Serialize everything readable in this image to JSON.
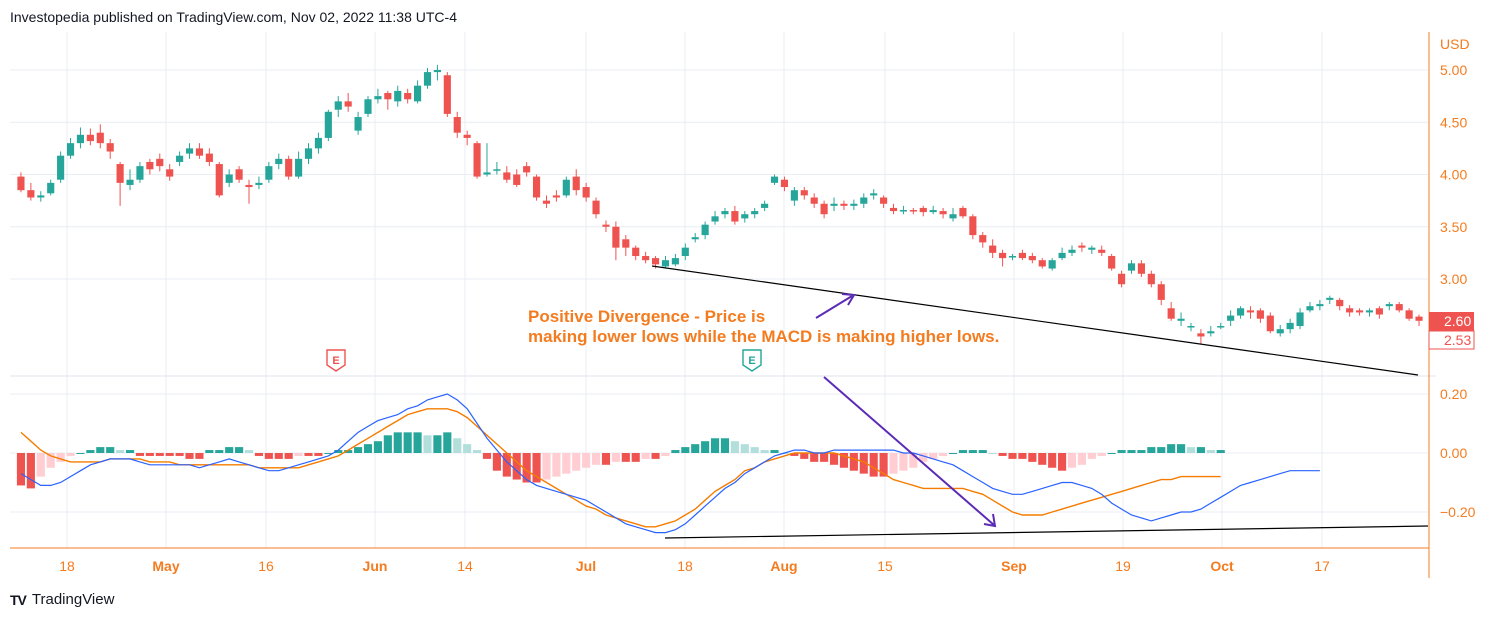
{
  "header": {
    "text": "Investopedia published on TradingView.com, Nov 02, 2022 11:38 UTC-4"
  },
  "footer": {
    "logo": "TV",
    "brand": "TradingView"
  },
  "colors": {
    "up": "#26a69a",
    "down": "#ef5350",
    "hist_up_strong": "#26a69a",
    "hist_up_weak": "#b2dfdb",
    "hist_down_strong": "#ef5350",
    "hist_down_weak": "#ffcdd2",
    "macd_line": "#2962ff",
    "signal_line": "#f57c00",
    "axis": "#f47c20",
    "grid": "#e8eef3",
    "arrow": "#5b2bb5",
    "trendline": "#000000"
  },
  "chart_data": {
    "type": "candlestick+macd",
    "price_axis": {
      "currency": "USD",
      "ticks": [
        "5.00",
        "4.50",
        "4.00",
        "3.50",
        "3.00"
      ],
      "tick_values": [
        5.0,
        4.5,
        4.0,
        3.5,
        3.0
      ],
      "last_price": "2.60",
      "low_price": "2.53"
    },
    "macd_axis": {
      "ticks": [
        "0.20",
        "0.00",
        "−0.20"
      ],
      "tick_values": [
        0.2,
        0.0,
        -0.2
      ]
    },
    "x_ticks": [
      {
        "label": "18",
        "month": false
      },
      {
        "label": "May",
        "month": true
      },
      {
        "label": "16",
        "month": false
      },
      {
        "label": "Jun",
        "month": true
      },
      {
        "label": "14",
        "month": false
      },
      {
        "label": "Jul",
        "month": true
      },
      {
        "label": "18",
        "month": false
      },
      {
        "label": "Aug",
        "month": true
      },
      {
        "label": "15",
        "month": false
      },
      {
        "label": "Sep",
        "month": true
      },
      {
        "label": "19",
        "month": false
      },
      {
        "label": "Oct",
        "month": true
      },
      {
        "label": "17",
        "month": false
      }
    ],
    "candles": [
      [
        3.98,
        3.85,
        4.02,
        3.83
      ],
      [
        3.85,
        3.78,
        3.92,
        3.75
      ],
      [
        3.78,
        3.8,
        3.84,
        3.74
      ],
      [
        3.82,
        3.92,
        3.95,
        3.8
      ],
      [
        3.95,
        4.18,
        4.22,
        3.92
      ],
      [
        4.18,
        4.3,
        4.35,
        4.15
      ],
      [
        4.3,
        4.38,
        4.45,
        4.25
      ],
      [
        4.38,
        4.32,
        4.44,
        4.28
      ],
      [
        4.4,
        4.3,
        4.48,
        4.25
      ],
      [
        4.3,
        4.22,
        4.34,
        4.15
      ],
      [
        4.1,
        3.92,
        4.12,
        3.7
      ],
      [
        3.9,
        3.95,
        4.05,
        3.85
      ],
      [
        3.95,
        4.08,
        4.12,
        3.92
      ],
      [
        4.12,
        4.05,
        4.15,
        4.0
      ],
      [
        4.15,
        4.08,
        4.2,
        4.03
      ],
      [
        4.05,
        3.98,
        4.1,
        3.94
      ],
      [
        4.12,
        4.18,
        4.22,
        4.08
      ],
      [
        4.2,
        4.25,
        4.3,
        4.15
      ],
      [
        4.25,
        4.18,
        4.3,
        4.15
      ],
      [
        4.2,
        4.12,
        4.25,
        4.08
      ],
      [
        4.1,
        3.8,
        4.12,
        3.78
      ],
      [
        3.92,
        4.0,
        4.05,
        3.88
      ],
      [
        4.05,
        3.95,
        4.08,
        3.92
      ],
      [
        3.9,
        3.88,
        3.95,
        3.72
      ],
      [
        3.9,
        3.92,
        3.98,
        3.86
      ],
      [
        3.95,
        4.08,
        4.12,
        3.92
      ],
      [
        4.1,
        4.15,
        4.2,
        4.05
      ],
      [
        4.15,
        3.98,
        4.18,
        3.95
      ],
      [
        3.98,
        4.15,
        4.22,
        3.96
      ],
      [
        4.15,
        4.25,
        4.3,
        4.1
      ],
      [
        4.25,
        4.35,
        4.4,
        4.2
      ],
      [
        4.35,
        4.6,
        4.62,
        4.32
      ],
      [
        4.62,
        4.7,
        4.75,
        4.55
      ],
      [
        4.7,
        4.65,
        4.78,
        4.6
      ],
      [
        4.42,
        4.55,
        4.6,
        4.38
      ],
      [
        4.58,
        4.72,
        4.75,
        4.55
      ],
      [
        4.72,
        4.75,
        4.82,
        4.68
      ],
      [
        4.78,
        4.72,
        4.8,
        4.62
      ],
      [
        4.7,
        4.8,
        4.85,
        4.65
      ],
      [
        4.78,
        4.72,
        4.82,
        4.68
      ],
      [
        4.7,
        4.85,
        4.9,
        4.68
      ],
      [
        4.85,
        4.98,
        5.02,
        4.82
      ],
      [
        4.98,
        5.0,
        5.05,
        4.9
      ],
      [
        4.95,
        4.58,
        4.98,
        4.55
      ],
      [
        4.55,
        4.4,
        4.6,
        4.35
      ],
      [
        4.38,
        4.35,
        4.42,
        4.28
      ],
      [
        4.3,
        3.98,
        4.32,
        3.96
      ],
      [
        4.0,
        4.02,
        4.3,
        3.98
      ],
      [
        4.05,
        4.05,
        4.12,
        4.0
      ],
      [
        4.02,
        3.95,
        4.08,
        3.92
      ],
      [
        4.0,
        3.9,
        4.05,
        3.88
      ],
      [
        4.08,
        4.02,
        4.12,
        3.98
      ],
      [
        3.98,
        3.78,
        4.0,
        3.75
      ],
      [
        3.75,
        3.72,
        3.8,
        3.68
      ],
      [
        3.8,
        3.78,
        3.85,
        3.74
      ],
      [
        3.8,
        3.95,
        3.98,
        3.78
      ],
      [
        3.98,
        3.85,
        4.05,
        3.8
      ],
      [
        3.88,
        3.78,
        3.92,
        3.74
      ],
      [
        3.75,
        3.62,
        3.78,
        3.58
      ],
      [
        3.52,
        3.5,
        3.56,
        3.45
      ],
      [
        3.5,
        3.3,
        3.55,
        3.18
      ],
      [
        3.38,
        3.3,
        3.42,
        3.22
      ],
      [
        3.3,
        3.22,
        3.32,
        3.18
      ],
      [
        3.22,
        3.18,
        3.26,
        3.15
      ],
      [
        3.2,
        3.14,
        3.22,
        3.1
      ],
      [
        3.12,
        3.18,
        3.22,
        3.1
      ],
      [
        3.14,
        3.2,
        3.24,
        3.12
      ],
      [
        3.22,
        3.3,
        3.34,
        3.18
      ],
      [
        3.38,
        3.4,
        3.44,
        3.35
      ],
      [
        3.42,
        3.52,
        3.55,
        3.38
      ],
      [
        3.55,
        3.6,
        3.65,
        3.52
      ],
      [
        3.62,
        3.65,
        3.68,
        3.58
      ],
      [
        3.65,
        3.55,
        3.7,
        3.52
      ],
      [
        3.58,
        3.62,
        3.65,
        3.54
      ],
      [
        3.62,
        3.65,
        3.68,
        3.58
      ],
      [
        3.68,
        3.72,
        3.75,
        3.65
      ],
      [
        3.92,
        3.98,
        4.0,
        3.9
      ],
      [
        3.95,
        3.88,
        3.98,
        3.84
      ],
      [
        3.75,
        3.85,
        3.88,
        3.7
      ],
      [
        3.85,
        3.8,
        3.88,
        3.76
      ],
      [
        3.78,
        3.72,
        3.82,
        3.68
      ],
      [
        3.72,
        3.62,
        3.75,
        3.58
      ],
      [
        3.7,
        3.72,
        3.78,
        3.65
      ],
      [
        3.72,
        3.7,
        3.75,
        3.66
      ],
      [
        3.7,
        3.72,
        3.76,
        3.66
      ],
      [
        3.72,
        3.78,
        3.82,
        3.68
      ],
      [
        3.8,
        3.82,
        3.86,
        3.76
      ],
      [
        3.78,
        3.72,
        3.8,
        3.68
      ],
      [
        3.68,
        3.65,
        3.72,
        3.62
      ],
      [
        3.65,
        3.66,
        3.7,
        3.62
      ],
      [
        3.66,
        3.65,
        3.68,
        3.62
      ],
      [
        3.68,
        3.64,
        3.7,
        3.6
      ],
      [
        3.64,
        3.66,
        3.7,
        3.62
      ],
      [
        3.65,
        3.62,
        3.68,
        3.58
      ],
      [
        3.58,
        3.62,
        3.68,
        3.55
      ],
      [
        3.68,
        3.6,
        3.7,
        3.58
      ],
      [
        3.6,
        3.42,
        3.62,
        3.38
      ],
      [
        3.42,
        3.35,
        3.45,
        3.3
      ],
      [
        3.32,
        3.25,
        3.38,
        3.2
      ],
      [
        3.25,
        3.2,
        3.28,
        3.12
      ],
      [
        3.22,
        3.22,
        3.24,
        3.18
      ],
      [
        3.25,
        3.2,
        3.28,
        3.18
      ],
      [
        3.22,
        3.18,
        3.25,
        3.15
      ],
      [
        3.18,
        3.12,
        3.2,
        3.1
      ],
      [
        3.1,
        3.18,
        3.2,
        3.08
      ],
      [
        3.2,
        3.25,
        3.3,
        3.18
      ],
      [
        3.25,
        3.28,
        3.32,
        3.22
      ],
      [
        3.32,
        3.3,
        3.35,
        3.26
      ],
      [
        3.28,
        3.3,
        3.32,
        3.24
      ],
      [
        3.28,
        3.25,
        3.32,
        3.22
      ],
      [
        3.22,
        3.1,
        3.24,
        3.08
      ],
      [
        3.05,
        2.95,
        3.08,
        2.92
      ],
      [
        3.08,
        3.15,
        3.18,
        3.05
      ],
      [
        3.15,
        3.05,
        3.18,
        3.02
      ],
      [
        3.05,
        2.95,
        3.08,
        2.92
      ],
      [
        2.95,
        2.8,
        2.98,
        2.75
      ],
      [
        2.72,
        2.62,
        2.78,
        2.6
      ],
      [
        2.6,
        2.62,
        2.68,
        2.55
      ],
      [
        2.55,
        2.55,
        2.58,
        2.5
      ],
      [
        2.48,
        2.45,
        2.52,
        2.38
      ],
      [
        2.48,
        2.5,
        2.55,
        2.45
      ],
      [
        2.55,
        2.55,
        2.58,
        2.52
      ],
      [
        2.6,
        2.65,
        2.7,
        2.55
      ],
      [
        2.65,
        2.72,
        2.74,
        2.62
      ],
      [
        2.7,
        2.68,
        2.74,
        2.62
      ],
      [
        2.7,
        2.62,
        2.72,
        2.58
      ],
      [
        2.65,
        2.5,
        2.68,
        2.48
      ],
      [
        2.48,
        2.52,
        2.56,
        2.45
      ],
      [
        2.52,
        2.58,
        2.62,
        2.48
      ],
      [
        2.55,
        2.68,
        2.72,
        2.52
      ],
      [
        2.7,
        2.74,
        2.78,
        2.68
      ],
      [
        2.74,
        2.76,
        2.8,
        2.7
      ],
      [
        2.8,
        2.82,
        2.84,
        2.76
      ],
      [
        2.8,
        2.74,
        2.82,
        2.7
      ],
      [
        2.72,
        2.68,
        2.75,
        2.64
      ],
      [
        2.7,
        2.68,
        2.72,
        2.65
      ],
      [
        2.68,
        2.7,
        2.72,
        2.64
      ],
      [
        2.72,
        2.66,
        2.74,
        2.62
      ],
      [
        2.74,
        2.76,
        2.78,
        2.7
      ],
      [
        2.76,
        2.7,
        2.78,
        2.68
      ],
      [
        2.7,
        2.62,
        2.72,
        2.6
      ],
      [
        2.64,
        2.6,
        2.66,
        2.55
      ]
    ],
    "macd": [
      -0.07,
      -0.09,
      -0.11,
      -0.11,
      -0.1,
      -0.08,
      -0.06,
      -0.04,
      -0.03,
      -0.02,
      -0.02,
      -0.02,
      -0.03,
      -0.04,
      -0.04,
      -0.04,
      -0.04,
      -0.04,
      -0.05,
      -0.04,
      -0.03,
      -0.02,
      -0.03,
      -0.04,
      -0.05,
      -0.06,
      -0.06,
      -0.05,
      -0.04,
      -0.03,
      -0.02,
      -0.01,
      0.01,
      0.04,
      0.07,
      0.09,
      0.11,
      0.12,
      0.13,
      0.15,
      0.16,
      0.18,
      0.19,
      0.2,
      0.18,
      0.15,
      0.1,
      0.05,
      0.01,
      -0.03,
      -0.06,
      -0.09,
      -0.11,
      -0.12,
      -0.13,
      -0.14,
      -0.15,
      -0.16,
      -0.18,
      -0.2,
      -0.22,
      -0.24,
      -0.25,
      -0.26,
      -0.27,
      -0.27,
      -0.26,
      -0.24,
      -0.21,
      -0.18,
      -0.15,
      -0.12,
      -0.1,
      -0.07,
      -0.05,
      -0.03,
      -0.01,
      0.0,
      0.01,
      0.01,
      0.0,
      0.0,
      0.01,
      0.01,
      0.01,
      0.01,
      0.01,
      0.01,
      0.01,
      0.0,
      0.0,
      -0.01,
      -0.02,
      -0.03,
      -0.04,
      -0.06,
      -0.08,
      -0.1,
      -0.12,
      -0.13,
      -0.14,
      -0.14,
      -0.13,
      -0.12,
      -0.11,
      -0.1,
      -0.1,
      -0.11,
      -0.12,
      -0.14,
      -0.17,
      -0.19,
      -0.21,
      -0.22,
      -0.23,
      -0.22,
      -0.21,
      -0.2,
      -0.2,
      -0.19,
      -0.17,
      -0.15,
      -0.13,
      -0.11,
      -0.1,
      -0.09,
      -0.08,
      -0.07,
      -0.06,
      -0.06,
      -0.06,
      -0.06
    ],
    "signal": [
      0.07,
      0.04,
      0.01,
      -0.01,
      -0.02,
      -0.03,
      -0.03,
      -0.03,
      -0.03,
      -0.02,
      -0.02,
      -0.02,
      -0.02,
      -0.03,
      -0.03,
      -0.03,
      -0.04,
      -0.04,
      -0.04,
      -0.04,
      -0.04,
      -0.04,
      -0.04,
      -0.04,
      -0.05,
      -0.05,
      -0.05,
      -0.05,
      -0.05,
      -0.04,
      -0.03,
      -0.02,
      -0.01,
      0.01,
      0.03,
      0.05,
      0.07,
      0.09,
      0.11,
      0.13,
      0.14,
      0.15,
      0.15,
      0.15,
      0.14,
      0.12,
      0.09,
      0.06,
      0.03,
      0.0,
      -0.03,
      -0.06,
      -0.08,
      -0.1,
      -0.12,
      -0.14,
      -0.16,
      -0.18,
      -0.19,
      -0.21,
      -0.22,
      -0.23,
      -0.24,
      -0.25,
      -0.25,
      -0.24,
      -0.23,
      -0.21,
      -0.19,
      -0.16,
      -0.13,
      -0.11,
      -0.09,
      -0.06,
      -0.05,
      -0.03,
      -0.02,
      -0.01,
      0.0,
      0.0,
      0.0,
      0.0,
      0.0,
      -0.01,
      -0.02,
      -0.03,
      -0.05,
      -0.07,
      -0.09,
      -0.1,
      -0.11,
      -0.12,
      -0.12,
      -0.12,
      -0.12,
      -0.12,
      -0.13,
      -0.14,
      -0.16,
      -0.18,
      -0.2,
      -0.21,
      -0.21,
      -0.21,
      -0.2,
      -0.19,
      -0.18,
      -0.17,
      -0.16,
      -0.15,
      -0.14,
      -0.13,
      -0.12,
      -0.11,
      -0.1,
      -0.09,
      -0.09,
      -0.08,
      -0.08,
      -0.08,
      -0.08,
      -0.08
    ],
    "histogram": [
      -0.11,
      -0.12,
      -0.08,
      -0.05,
      -0.03,
      -0.01,
      0.0,
      0.01,
      0.02,
      0.02,
      0.01,
      0.01,
      -0.01,
      -0.01,
      -0.01,
      -0.01,
      -0.01,
      -0.02,
      -0.02,
      0.01,
      0.01,
      0.02,
      0.02,
      0.01,
      -0.01,
      -0.02,
      -0.02,
      -0.02,
      -0.01,
      -0.01,
      -0.01,
      0.0,
      0.01,
      0.01,
      0.02,
      0.03,
      0.04,
      0.06,
      0.07,
      0.07,
      0.07,
      0.06,
      0.06,
      0.07,
      0.05,
      0.03,
      0.01,
      -0.02,
      -0.06,
      -0.08,
      -0.09,
      -0.1,
      -0.1,
      -0.09,
      -0.08,
      -0.07,
      -0.06,
      -0.05,
      -0.04,
      -0.04,
      -0.03,
      -0.03,
      -0.03,
      -0.02,
      -0.02,
      -0.01,
      0.01,
      0.02,
      0.03,
      0.04,
      0.05,
      0.05,
      0.04,
      0.03,
      0.02,
      0.01,
      0.01,
      0.0,
      -0.01,
      -0.02,
      -0.03,
      -0.03,
      -0.04,
      -0.05,
      -0.06,
      -0.07,
      -0.08,
      -0.08,
      -0.07,
      -0.06,
      -0.05,
      -0.03,
      -0.02,
      -0.01,
      0.0,
      0.01,
      0.01,
      0.01,
      0.0,
      -0.01,
      -0.02,
      -0.02,
      -0.03,
      -0.04,
      -0.05,
      -0.06,
      -0.05,
      -0.04,
      -0.02,
      -0.01,
      0.0,
      0.01,
      0.01,
      0.01,
      0.02,
      0.02,
      0.03,
      0.03,
      0.02,
      0.02,
      0.01,
      0.01
    ],
    "events": [
      {
        "label": "E",
        "type": "earnings-negative"
      },
      {
        "label": "E",
        "type": "earnings-positive"
      }
    ],
    "annotation": {
      "line1": "Positive Divergence - Price is",
      "line2": "making lower lows while the MACD is making higher lows."
    }
  }
}
